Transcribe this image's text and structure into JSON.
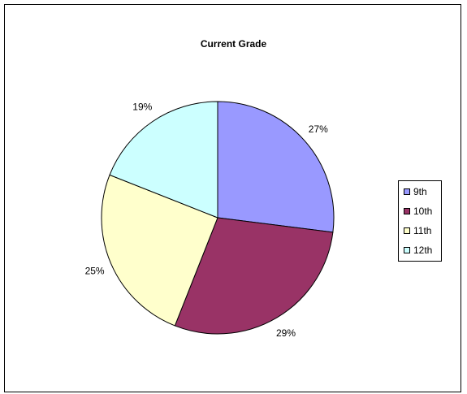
{
  "chart_data": {
    "type": "pie",
    "title": "Current Grade",
    "categories": [
      "9th",
      "10th",
      "11th",
      "12th"
    ],
    "values": [
      27,
      29,
      25,
      19
    ],
    "data_labels": [
      "27%",
      "29%",
      "25%",
      "19%"
    ],
    "colors": [
      "#9999ff",
      "#993366",
      "#ffffcc",
      "#ccffff"
    ],
    "legend_position": "right"
  }
}
